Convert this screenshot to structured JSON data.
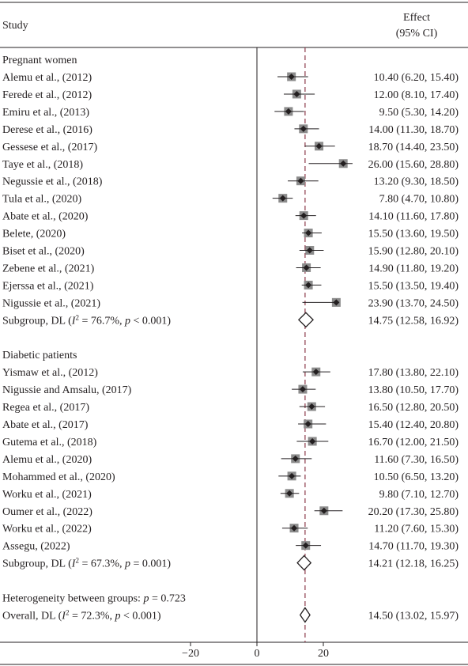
{
  "colors": {
    "text": "#231f20",
    "box": "#8c8c8c",
    "rule": "#231f20",
    "overall_line": "#8b3a4a"
  },
  "headers": {
    "study": "Study",
    "effect_line1": "Effect",
    "effect_line2": "(95% CI)"
  },
  "chart_data": {
    "type": "forest",
    "x_ticks": [
      -20,
      0,
      20
    ],
    "xlim": [
      -40,
      35
    ],
    "null_line": 0,
    "overall_effect": 14.5,
    "groups": [
      {
        "label": "Pregnant women",
        "studies": [
          {
            "name": "Alemu et al., (2012)",
            "effect": 10.4,
            "lo": 6.2,
            "hi": 15.4,
            "ci_text": "10.40 (6.20, 15.40)"
          },
          {
            "name": "Ferede et al., (2012)",
            "effect": 12.0,
            "lo": 8.1,
            "hi": 17.4,
            "ci_text": "12.00 (8.10, 17.40)"
          },
          {
            "name": "Emiru et al., (2013)",
            "effect": 9.5,
            "lo": 5.3,
            "hi": 14.2,
            "ci_text": "9.50 (5.30, 14.20)"
          },
          {
            "name": "Derese et al., (2016)",
            "effect": 14.0,
            "lo": 11.3,
            "hi": 18.7,
            "ci_text": "14.00 (11.30, 18.70)"
          },
          {
            "name": "Gessese et al., (2017)",
            "effect": 18.7,
            "lo": 14.4,
            "hi": 23.5,
            "ci_text": "18.70 (14.40, 23.50)"
          },
          {
            "name": "Taye et al., (2018)",
            "effect": 26.0,
            "lo": 15.6,
            "hi": 28.8,
            "ci_text": "26.00 (15.60, 28.80)"
          },
          {
            "name": "Negussie et al., (2018)",
            "effect": 13.2,
            "lo": 9.3,
            "hi": 18.5,
            "ci_text": "13.20 (9.30, 18.50)"
          },
          {
            "name": "Tula et al., (2020)",
            "effect": 7.8,
            "lo": 4.7,
            "hi": 10.8,
            "ci_text": "7.80 (4.70, 10.80)"
          },
          {
            "name": "Abate et al., (2020)",
            "effect": 14.1,
            "lo": 11.6,
            "hi": 17.8,
            "ci_text": "14.10 (11.60, 17.80)"
          },
          {
            "name": "Belete, (2020)",
            "effect": 15.5,
            "lo": 13.6,
            "hi": 19.5,
            "ci_text": "15.50 (13.60, 19.50)"
          },
          {
            "name": "Biset et al., (2020)",
            "effect": 15.9,
            "lo": 12.8,
            "hi": 20.1,
            "ci_text": "15.90 (12.80, 20.10)"
          },
          {
            "name": "Zebene et al., (2021)",
            "effect": 14.9,
            "lo": 11.8,
            "hi": 19.2,
            "ci_text": "14.90 (11.80, 19.20)"
          },
          {
            "name": "Ejerssa et al., (2021)",
            "effect": 15.5,
            "lo": 13.5,
            "hi": 19.4,
            "ci_text": "15.50 (13.50, 19.40)"
          },
          {
            "name": "Nigussie et al., (2021)",
            "effect": 23.9,
            "lo": 13.7,
            "hi": 24.5,
            "ci_text": "23.90 (13.70, 24.50)"
          }
        ],
        "subgroup": {
          "prefix": "Subgroup, DL (",
          "i2_label": "I",
          "i2_sup": "2",
          "i2_value": " = 76.7%, ",
          "p_label": "p",
          "p_value": " < 0.001)",
          "effect": 14.75,
          "lo": 12.58,
          "hi": 16.92,
          "ci_text": "14.75 (12.58, 16.92)"
        }
      },
      {
        "label": "Diabetic patients",
        "studies": [
          {
            "name": "Yismaw et al., (2012)",
            "effect": 17.8,
            "lo": 13.8,
            "hi": 22.1,
            "ci_text": "17.80 (13.80, 22.10)"
          },
          {
            "name": "Nigussie and Amsalu, (2017)",
            "effect": 13.8,
            "lo": 10.5,
            "hi": 17.7,
            "ci_text": "13.80 (10.50, 17.70)"
          },
          {
            "name": "Regea et al., (2017)",
            "effect": 16.5,
            "lo": 12.8,
            "hi": 20.5,
            "ci_text": "16.50 (12.80, 20.50)"
          },
          {
            "name": "Abate et al., (2017)",
            "effect": 15.4,
            "lo": 12.4,
            "hi": 20.8,
            "ci_text": "15.40 (12.40, 20.80)"
          },
          {
            "name": "Gutema et al., (2018)",
            "effect": 16.7,
            "lo": 12.0,
            "hi": 21.5,
            "ci_text": "16.70 (12.00, 21.50)"
          },
          {
            "name": "Alemu et al., (2020)",
            "effect": 11.6,
            "lo": 7.3,
            "hi": 16.5,
            "ci_text": "11.60 (7.30, 16.50)"
          },
          {
            "name": "Mohammed et al., (2020)",
            "effect": 10.5,
            "lo": 6.5,
            "hi": 13.2,
            "ci_text": "10.50 (6.50, 13.20)"
          },
          {
            "name": "Worku et al., (2021)",
            "effect": 9.8,
            "lo": 7.1,
            "hi": 12.7,
            "ci_text": "9.80 (7.10, 12.70)"
          },
          {
            "name": "Oumer et al., (2022)",
            "effect": 20.2,
            "lo": 17.3,
            "hi": 25.8,
            "ci_text": "20.20 (17.30, 25.80)"
          },
          {
            "name": "Worku et al., (2022)",
            "effect": 11.2,
            "lo": 7.6,
            "hi": 15.3,
            "ci_text": "11.20 (7.60, 15.30)"
          },
          {
            "name": "Assegu, (2022)",
            "effect": 14.7,
            "lo": 11.7,
            "hi": 19.3,
            "ci_text": "14.70 (11.70, 19.30)"
          }
        ],
        "subgroup": {
          "prefix": "Subgroup, DL (",
          "i2_label": "I",
          "i2_sup": "2",
          "i2_value": " = 67.3%, ",
          "p_label": "p",
          "p_value": " = 0.001)",
          "effect": 14.21,
          "lo": 12.18,
          "hi": 16.25,
          "ci_text": "14.21 (12.18, 16.25)"
        }
      }
    ],
    "heterogeneity": {
      "prefix": "Heterogeneity between groups: ",
      "p_label": "p",
      "p_value": " = 0.723"
    },
    "overall": {
      "prefix": "Overall, DL (",
      "i2_label": "I",
      "i2_sup": "2",
      "i2_value": " = 72.3%, ",
      "p_label": "p",
      "p_value": " < 0.001)",
      "effect": 14.5,
      "lo": 13.02,
      "hi": 15.97,
      "ci_text": "14.50 (13.02, 15.97)"
    }
  }
}
